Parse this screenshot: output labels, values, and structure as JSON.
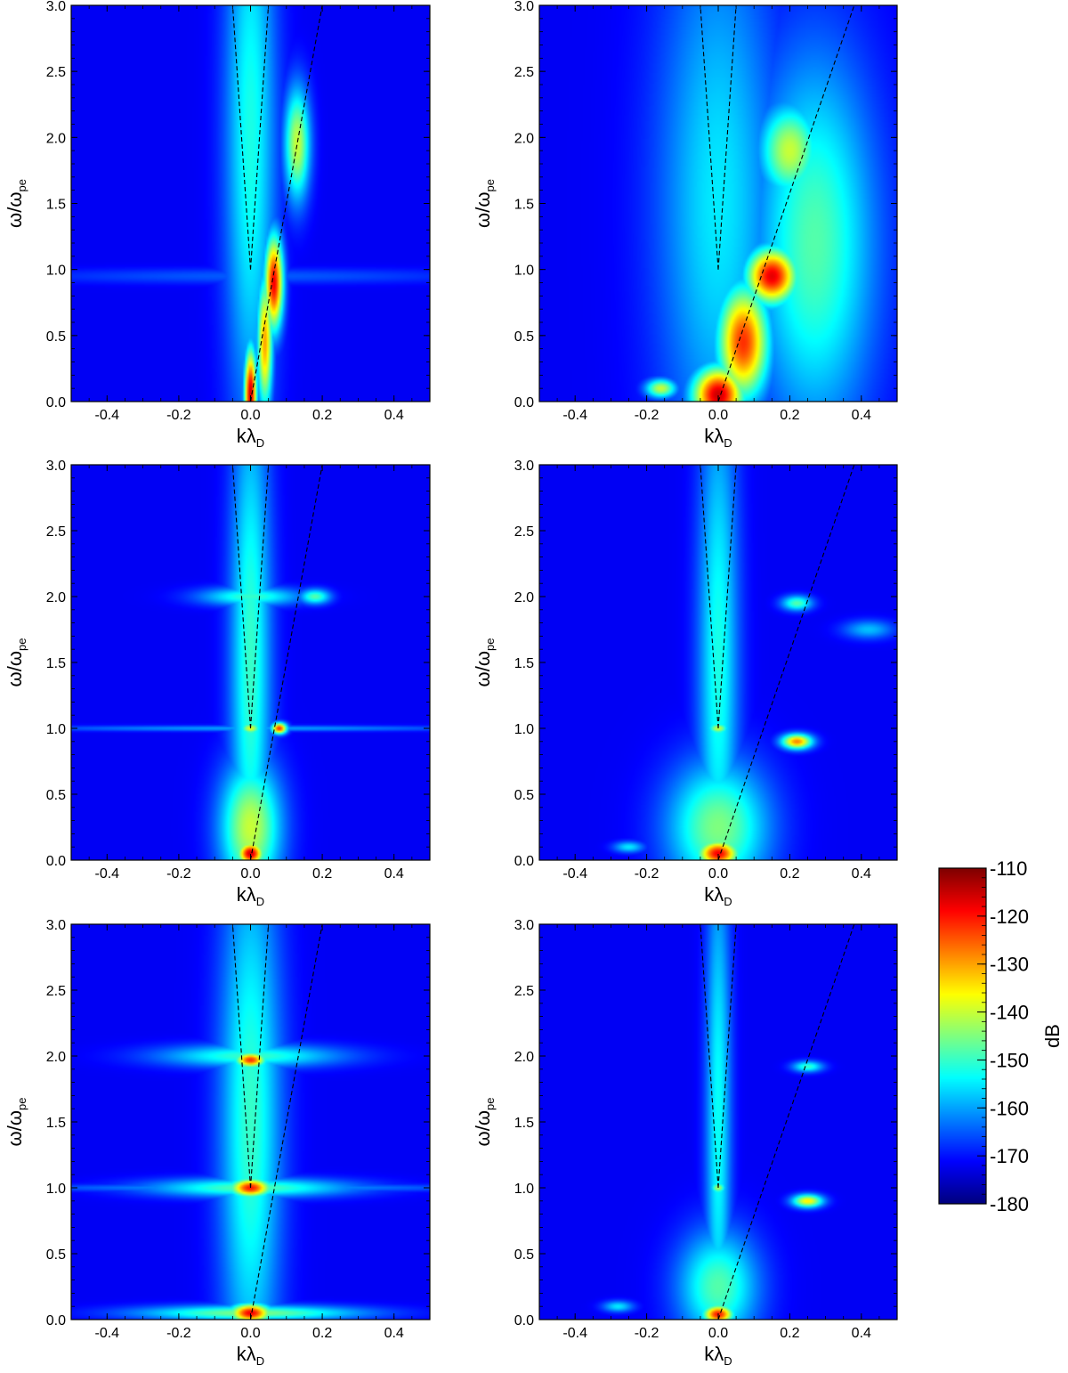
{
  "chart_data": {
    "type": "heatmap",
    "panels": [
      {
        "id": "top-left",
        "xlabel": "kλ",
        "xlabel_sub": "D",
        "ylabel": "ω/ω",
        "ylabel_sub": "pe",
        "xlim": [
          -0.5,
          0.5
        ],
        "ylim": [
          0.0,
          3.0
        ],
        "xticks": [
          "-0.4",
          "-0.2",
          "0.0",
          "0.2",
          "0.4"
        ],
        "yticks": [
          "0.0",
          "0.5",
          "1.0",
          "1.5",
          "2.0",
          "2.5",
          "3.0"
        ],
        "dispersion_curves": [
          {
            "points": [
              [
                0.0,
                1.0
              ],
              [
                -0.05,
                3.0
              ]
            ]
          },
          {
            "points": [
              [
                0.0,
                1.0
              ],
              [
                0.05,
                3.0
              ]
            ]
          },
          {
            "points": [
              [
                0.0,
                0.0
              ],
              [
                0.2,
                3.0
              ]
            ]
          }
        ],
        "features": [
          {
            "k": 0.0,
            "w": 0.05,
            "sk": 0.012,
            "sw": 0.25,
            "db": -115
          },
          {
            "k": 0.065,
            "w": 0.9,
            "sk": 0.018,
            "sw": 0.25,
            "db": -118
          },
          {
            "k": 0.04,
            "w": 0.45,
            "sk": 0.015,
            "sw": 0.35,
            "db": -130
          },
          {
            "k": 0.13,
            "w": 1.95,
            "sk": 0.025,
            "sw": 0.3,
            "db": -140
          },
          {
            "k": 0.0,
            "w": 2.0,
            "sk": 0.05,
            "sw": 1.6,
            "db": -152
          },
          {
            "k": 0.0,
            "w": 0.95,
            "sk": 0.45,
            "sw": 0.04,
            "db": -165
          }
        ]
      },
      {
        "id": "top-right",
        "xlabel": "kλ",
        "xlabel_sub": "D",
        "ylabel": "ω/ω",
        "ylabel_sub": "pe",
        "xlim": [
          -0.5,
          0.5
        ],
        "ylim": [
          0.0,
          3.0
        ],
        "xticks": [
          "-0.4",
          "-0.2",
          "0.0",
          "0.2",
          "0.4"
        ],
        "yticks": [
          "0.0",
          "0.5",
          "1.0",
          "1.5",
          "2.0",
          "2.5",
          "3.0"
        ],
        "dispersion_curves": [
          {
            "points": [
              [
                0.0,
                1.0
              ],
              [
                -0.05,
                3.0
              ]
            ]
          },
          {
            "points": [
              [
                0.0,
                1.0
              ],
              [
                0.05,
                3.0
              ]
            ]
          },
          {
            "points": [
              [
                0.0,
                0.0
              ],
              [
                0.38,
                3.0
              ]
            ]
          }
        ],
        "features": [
          {
            "k": 0.0,
            "w": 0.05,
            "sk": 0.05,
            "sw": 0.15,
            "db": -115
          },
          {
            "k": 0.15,
            "w": 0.95,
            "sk": 0.05,
            "sw": 0.15,
            "db": -117
          },
          {
            "k": 0.07,
            "w": 0.45,
            "sk": 0.05,
            "sw": 0.3,
            "db": -122
          },
          {
            "k": 0.2,
            "w": 1.9,
            "sk": 0.06,
            "sw": 0.25,
            "db": -140
          },
          {
            "k": 0.27,
            "w": 1.2,
            "sk": 0.12,
            "sw": 1.0,
            "db": -148
          },
          {
            "k": -0.16,
            "w": 0.1,
            "sk": 0.03,
            "sw": 0.05,
            "db": -140
          },
          {
            "k": 0.0,
            "w": 1.5,
            "sk": 0.12,
            "sw": 1.5,
            "db": -155
          }
        ]
      },
      {
        "id": "middle-left",
        "xlabel": "kλ",
        "xlabel_sub": "D",
        "ylabel": "ω/ω",
        "ylabel_sub": "pe",
        "xlim": [
          -0.5,
          0.5
        ],
        "ylim": [
          0.0,
          3.0
        ],
        "xticks": [
          "-0.4",
          "-0.2",
          "0.0",
          "0.2",
          "0.4"
        ],
        "yticks": [
          "0.0",
          "0.5",
          "1.0",
          "1.5",
          "2.0",
          "2.5",
          "3.0"
        ],
        "dispersion_curves": [
          {
            "points": [
              [
                0.0,
                1.0
              ],
              [
                -0.05,
                3.0
              ]
            ]
          },
          {
            "points": [
              [
                0.0,
                1.0
              ],
              [
                0.05,
                3.0
              ]
            ]
          },
          {
            "points": [
              [
                0.0,
                0.0
              ],
              [
                0.2,
                3.0
              ]
            ]
          }
        ],
        "features": [
          {
            "k": 0.0,
            "w": 0.05,
            "sk": 0.025,
            "sw": 0.06,
            "db": -115
          },
          {
            "k": 0.08,
            "w": 1.0,
            "sk": 0.015,
            "sw": 0.03,
            "db": -122
          },
          {
            "k": 0.0,
            "w": 1.0,
            "sk": 0.02,
            "sw": 0.03,
            "db": -138
          },
          {
            "k": 0.0,
            "w": 2.0,
            "sk": 0.1,
            "sw": 0.05,
            "db": -150
          },
          {
            "k": 0.18,
            "w": 2.0,
            "sk": 0.03,
            "sw": 0.04,
            "db": -148
          },
          {
            "k": 0.0,
            "w": 1.5,
            "sk": 0.04,
            "sw": 1.5,
            "db": -150
          },
          {
            "k": 0.0,
            "w": 0.25,
            "sk": 0.06,
            "sw": 0.35,
            "db": -140
          },
          {
            "k": 0.0,
            "w": 1.0,
            "sk": 0.45,
            "sw": 0.015,
            "db": -160
          }
        ]
      },
      {
        "id": "middle-right",
        "xlabel": "kλ",
        "xlabel_sub": "D",
        "ylabel": "ω/ω",
        "ylabel_sub": "pe",
        "xlim": [
          -0.5,
          0.5
        ],
        "ylim": [
          0.0,
          3.0
        ],
        "xticks": [
          "-0.4",
          "-0.2",
          "0.0",
          "0.2",
          "0.4"
        ],
        "yticks": [
          "0.0",
          "0.5",
          "1.0",
          "1.5",
          "2.0",
          "2.5",
          "3.0"
        ],
        "dispersion_curves": [
          {
            "points": [
              [
                0.0,
                1.0
              ],
              [
                -0.05,
                3.0
              ]
            ]
          },
          {
            "points": [
              [
                0.0,
                1.0
              ],
              [
                0.05,
                3.0
              ]
            ]
          },
          {
            "points": [
              [
                0.0,
                0.0
              ],
              [
                0.38,
                3.0
              ]
            ]
          }
        ],
        "features": [
          {
            "k": 0.0,
            "w": 0.05,
            "sk": 0.04,
            "sw": 0.07,
            "db": -118
          },
          {
            "k": 0.22,
            "w": 0.9,
            "sk": 0.03,
            "sw": 0.04,
            "db": -128
          },
          {
            "k": 0.22,
            "w": 1.95,
            "sk": 0.03,
            "sw": 0.04,
            "db": -148
          },
          {
            "k": 0.0,
            "w": 1.0,
            "sk": 0.02,
            "sw": 0.03,
            "db": -140
          },
          {
            "k": 0.0,
            "w": 1.5,
            "sk": 0.04,
            "sw": 1.5,
            "db": -152
          },
          {
            "k": 0.0,
            "w": 0.25,
            "sk": 0.1,
            "sw": 0.35,
            "db": -145
          },
          {
            "k": 0.42,
            "w": 1.75,
            "sk": 0.05,
            "sw": 0.05,
            "db": -158
          },
          {
            "k": -0.25,
            "w": 0.1,
            "sk": 0.03,
            "sw": 0.03,
            "db": -155
          }
        ]
      },
      {
        "id": "bottom-left",
        "xlabel": "kλ",
        "xlabel_sub": "D",
        "ylabel": "ω/ω",
        "ylabel_sub": "pe",
        "xlim": [
          -0.5,
          0.5
        ],
        "ylim": [
          0.0,
          3.0
        ],
        "xticks": [
          "-0.4",
          "-0.2",
          "0.0",
          "0.2",
          "0.4"
        ],
        "yticks": [
          "0.0",
          "0.5",
          "1.0",
          "1.5",
          "2.0",
          "2.5",
          "3.0"
        ],
        "dispersion_curves": [
          {
            "points": [
              [
                0.0,
                1.0
              ],
              [
                -0.05,
                3.0
              ]
            ]
          },
          {
            "points": [
              [
                0.0,
                1.0
              ],
              [
                0.05,
                3.0
              ]
            ]
          },
          {
            "points": [
              [
                0.0,
                0.0
              ],
              [
                0.2,
                3.0
              ]
            ]
          }
        ],
        "features": [
          {
            "k": 0.0,
            "w": 0.05,
            "sk": 0.04,
            "sw": 0.05,
            "db": -118
          },
          {
            "k": 0.0,
            "w": 1.0,
            "sk": 0.04,
            "sw": 0.05,
            "db": -120
          },
          {
            "k": 0.0,
            "w": 1.97,
            "sk": 0.03,
            "sw": 0.04,
            "db": -122
          },
          {
            "k": 0.0,
            "w": 1.0,
            "sk": 0.2,
            "sw": 0.05,
            "db": -148
          },
          {
            "k": 0.0,
            "w": 2.0,
            "sk": 0.18,
            "sw": 0.06,
            "db": -150
          },
          {
            "k": 0.0,
            "w": 0.05,
            "sk": 0.22,
            "sw": 0.04,
            "db": -145
          },
          {
            "k": 0.0,
            "w": 1.5,
            "sk": 0.06,
            "sw": 1.5,
            "db": -150
          },
          {
            "k": 0.0,
            "w": 1.0,
            "sk": 0.45,
            "sw": 0.02,
            "db": -160
          }
        ]
      },
      {
        "id": "bottom-right",
        "xlabel": "kλ",
        "xlabel_sub": "D",
        "ylabel": "ω/ω",
        "ylabel_sub": "pe",
        "xlim": [
          -0.5,
          0.5
        ],
        "ylim": [
          0.0,
          3.0
        ],
        "xticks": [
          "-0.4",
          "-0.2",
          "0.0",
          "0.2",
          "0.4"
        ],
        "yticks": [
          "0.0",
          "0.5",
          "1.0",
          "1.5",
          "2.0",
          "2.5",
          "3.0"
        ],
        "dispersion_curves": [
          {
            "points": [
              [
                0.0,
                1.0
              ],
              [
                -0.05,
                3.0
              ]
            ]
          },
          {
            "points": [
              [
                0.0,
                1.0
              ],
              [
                0.05,
                3.0
              ]
            ]
          },
          {
            "points": [
              [
                0.0,
                0.0
              ],
              [
                0.38,
                3.0
              ]
            ]
          }
        ],
        "features": [
          {
            "k": 0.0,
            "w": 0.04,
            "sk": 0.03,
            "sw": 0.05,
            "db": -120
          },
          {
            "k": 0.25,
            "w": 0.9,
            "sk": 0.03,
            "sw": 0.035,
            "db": -135
          },
          {
            "k": 0.25,
            "w": 1.92,
            "sk": 0.03,
            "sw": 0.03,
            "db": -150
          },
          {
            "k": 0.0,
            "w": 1.0,
            "sk": 0.015,
            "sw": 0.03,
            "db": -142
          },
          {
            "k": 0.0,
            "w": 1.5,
            "sk": 0.025,
            "sw": 1.5,
            "db": -153
          },
          {
            "k": 0.0,
            "w": 0.25,
            "sk": 0.08,
            "sw": 0.3,
            "db": -148
          },
          {
            "k": -0.28,
            "w": 0.1,
            "sk": 0.03,
            "sw": 0.03,
            "db": -155
          }
        ]
      }
    ],
    "colorbar": {
      "label": "dB",
      "range": [
        -180,
        -110
      ],
      "ticks": [
        "-110",
        "-120",
        "-130",
        "-140",
        "-150",
        "-160",
        "-170",
        "-180"
      ],
      "tick_values": [
        -110,
        -120,
        -130,
        -140,
        -150,
        -160,
        -170,
        -180
      ],
      "background_db": -172,
      "colormap": [
        "#00007f",
        "#0000ff",
        "#007fff",
        "#00ffff",
        "#7fff7f",
        "#ffff00",
        "#ff7f00",
        "#ff0000",
        "#7f0000"
      ]
    }
  }
}
